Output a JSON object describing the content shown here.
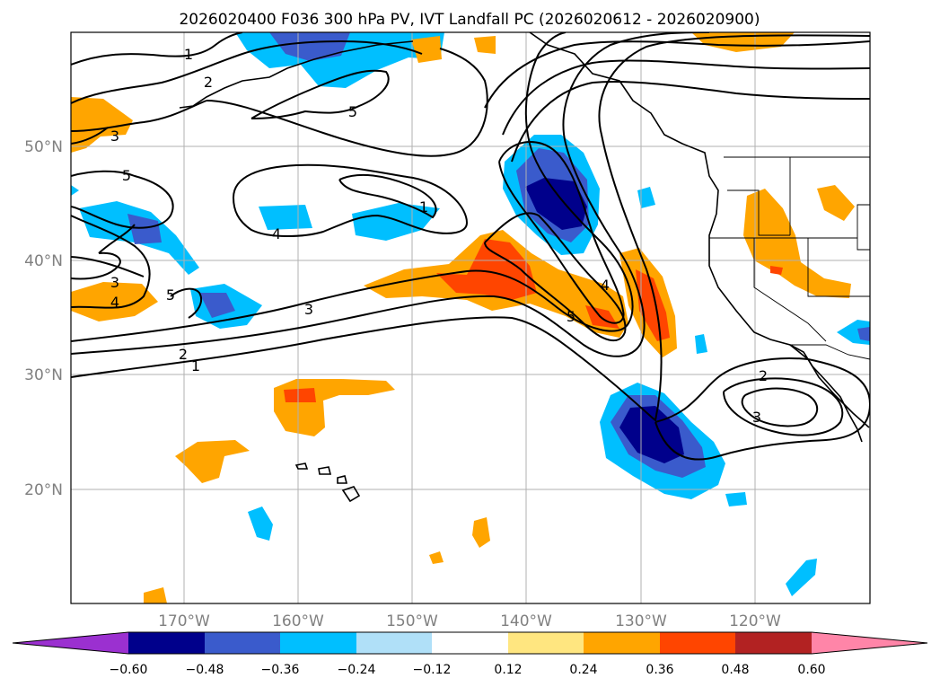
{
  "title": "2026020400 F036 300 hPa PV, IVT Landfall PC (2026020612 - 2026020900)",
  "lat_labels": [
    "50°N",
    "40°N",
    "30°N",
    "20°N"
  ],
  "lon_labels": [
    "170°W",
    "160°W",
    "150°W",
    "140°W",
    "130°W",
    "120°W"
  ],
  "contour_labels": [
    "1",
    "2",
    "3",
    "5",
    "5",
    "4",
    "1",
    "3",
    "5",
    "4",
    "3",
    "2",
    "1",
    "4",
    "5",
    "2",
    "3"
  ],
  "colorbar": {
    "ticks": [
      "−0.60",
      "−0.48",
      "−0.36",
      "−0.24",
      "−0.12",
      "0.12",
      "0.24",
      "0.36",
      "0.48",
      "0.60"
    ],
    "colors": [
      "#9b30d0",
      "#00008b",
      "#3a5bcc",
      "#00bfff",
      "#b0e0f8",
      "#ffffff",
      "#ffe680",
      "#ffa500",
      "#ff4500",
      "#b22222",
      "#ff85a8"
    ]
  },
  "colors": {
    "blue_dark": "#00008b",
    "blue_mid": "#3a5bcc",
    "blue_light": "#00bfff",
    "blue_pale": "#b0e0f8",
    "yellow": "#ffe680",
    "orange": "#ffa500",
    "red_orange": "#ff4500"
  }
}
